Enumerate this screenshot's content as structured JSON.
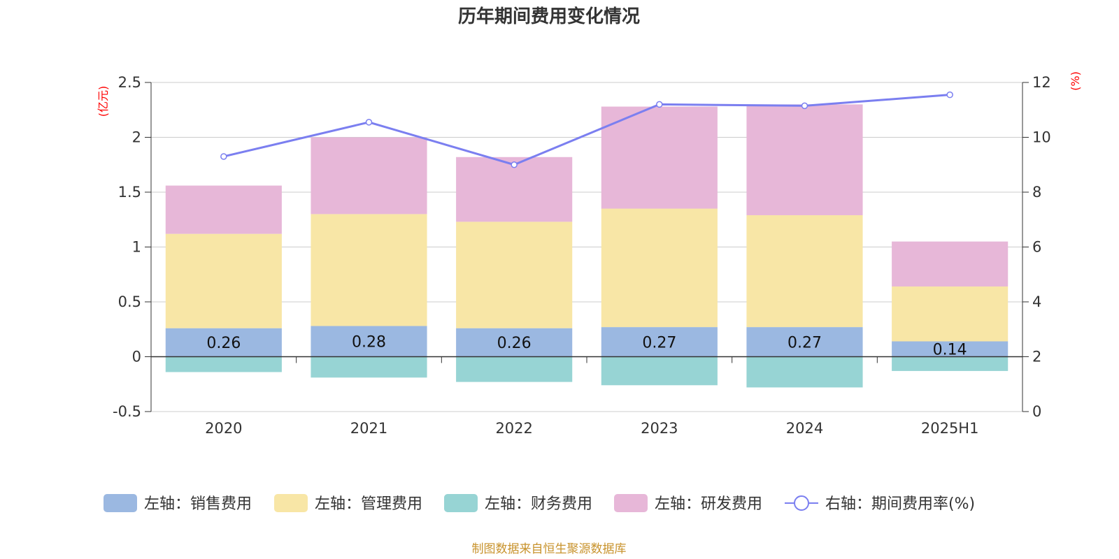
{
  "chart_data": {
    "type": "bar",
    "title": "历年期间费用变化情况",
    "categories": [
      "2020",
      "2021",
      "2022",
      "2023",
      "2024",
      "2025H1"
    ],
    "left_axis": {
      "unit": "(亿元)",
      "ylim": [
        -0.5,
        2.5
      ],
      "ticks": [
        -0.5,
        0,
        0.5,
        1,
        1.5,
        2,
        2.5
      ],
      "tick_labels": [
        "-0.5",
        "0",
        "0.5",
        "1",
        "1.5",
        "2",
        "2.5"
      ]
    },
    "right_axis": {
      "unit": "(%)",
      "ylim": [
        0,
        12
      ],
      "ticks": [
        0,
        2,
        4,
        6,
        8,
        10,
        12
      ],
      "tick_labels": [
        "0",
        "2",
        "4",
        "6",
        "8",
        "10",
        "12"
      ]
    },
    "series": [
      {
        "name": "左轴：销售费用",
        "type": "bar",
        "axis": "left",
        "color": "#9bb8e1",
        "values": [
          0.26,
          0.28,
          0.26,
          0.27,
          0.27,
          0.14
        ],
        "data_labels": [
          "0.26",
          "0.28",
          "0.26",
          "0.27",
          "0.27",
          "0.14"
        ]
      },
      {
        "name": "左轴：管理费用",
        "type": "bar",
        "axis": "left",
        "color": "#f8e6a6",
        "values": [
          0.86,
          1.02,
          0.97,
          1.08,
          1.02,
          0.5
        ]
      },
      {
        "name": "左轴：财务费用",
        "type": "bar",
        "axis": "left",
        "color": "#97d4d4",
        "values": [
          -0.14,
          -0.19,
          -0.23,
          -0.26,
          -0.28,
          -0.13
        ]
      },
      {
        "name": "左轴：研发费用",
        "type": "bar",
        "axis": "left",
        "color": "#e7b7d8",
        "values": [
          0.44,
          0.7,
          0.59,
          0.93,
          1.01,
          0.41
        ]
      },
      {
        "name": "右轴：期间费用率(%)",
        "type": "line",
        "axis": "right",
        "color": "#7b7ff0",
        "values": [
          9.3,
          10.55,
          9.0,
          11.2,
          11.15,
          11.55
        ]
      }
    ],
    "grid": true,
    "legend_position": "bottom",
    "source_note": "制图数据来自恒生聚源数据库"
  }
}
